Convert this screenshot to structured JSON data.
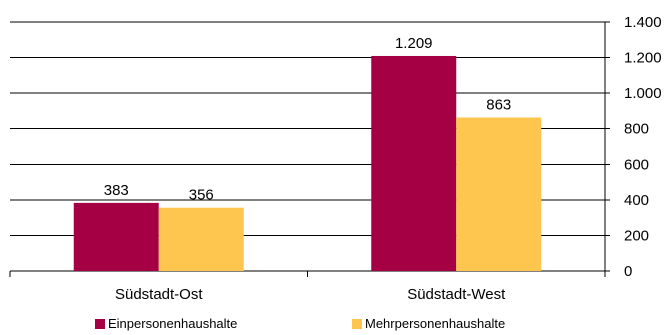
{
  "chart_data": {
    "type": "bar",
    "categories": [
      "Südstadt-Ost",
      "Südstadt-West"
    ],
    "series": [
      {
        "name": "Einpersonenhaushalte",
        "values": [
          383,
          1209
        ],
        "labels": [
          "383",
          "1.209"
        ],
        "color": "#A50044"
      },
      {
        "name": "Mehrpersonenhaushalte",
        "values": [
          356,
          863
        ],
        "labels": [
          "356",
          "863"
        ],
        "color": "#FFC64F"
      }
    ],
    "ylim": [
      0,
      1400
    ],
    "yticks": [
      0,
      200,
      400,
      600,
      800,
      1000,
      1200,
      1400
    ],
    "ytick_labels": [
      "0",
      "200",
      "400",
      "600",
      "800",
      "1.000",
      "1.200",
      "1.400"
    ],
    "y_axis_side": "right",
    "grid": true,
    "legend_position": "bottom"
  }
}
